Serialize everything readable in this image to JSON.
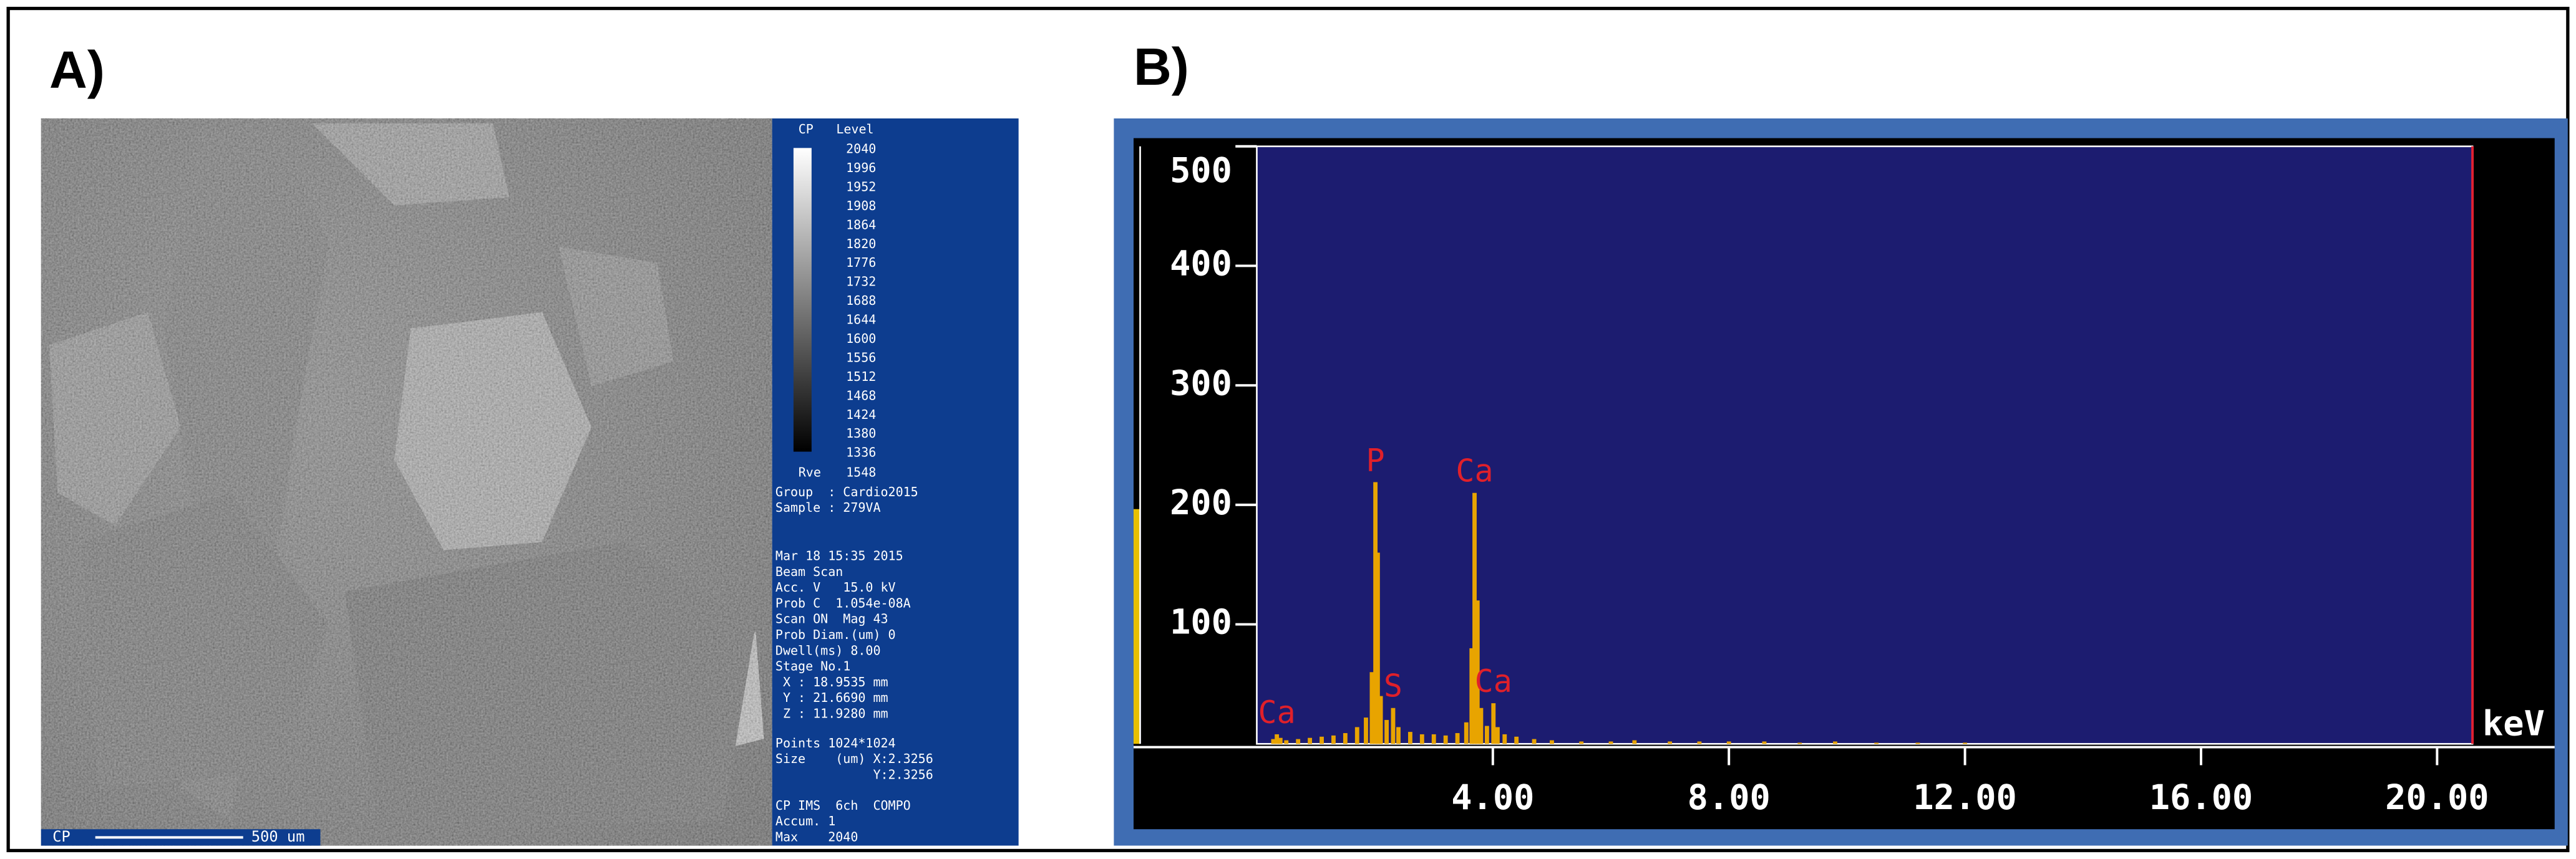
{
  "panel_a": {
    "label": "A)",
    "bar_header": "CP",
    "level_header": "Level",
    "levels": [
      "2040",
      "1996",
      "1952",
      "1908",
      "1864",
      "1820",
      "1776",
      "1732",
      "1688",
      "1644",
      "1600",
      "1556",
      "1512",
      "1468",
      "1424",
      "1380",
      "1336"
    ],
    "ave_label": "Rve",
    "ave_value": "1548",
    "info_blocks": [
      [
        "Group  : Cardio2015",
        "Sample : 279VA"
      ],
      [
        "Mar 18 15:35 2015",
        "Beam Scan",
        "Acc. V   15.0 kV",
        "Prob C  1.054e-08A",
        "Scan ON  Mag 43",
        "Prob Diam.(um) 0",
        "Dwell(ms) 8.00",
        "Stage No.1",
        " X : 18.9535 mm",
        " Y : 21.6690 mm",
        " Z : 11.9280 mm"
      ],
      [
        "Points 1024*1024",
        "Size    (um) X:2.3256",
        "             Y:2.3256"
      ],
      [
        "CP IMS  6ch  COMPO",
        "Accum. 1",
        "Max    2040"
      ]
    ],
    "scalebar_mode": "CP",
    "scalebar_label": "500 um"
  },
  "panel_b_label": "B)",
  "chart_data": {
    "type": "bar",
    "xlabel": "keV",
    "color": "#e8a400",
    "x": [
      0.28,
      0.34,
      0.4,
      0.5,
      0.7,
      0.9,
      1.1,
      1.3,
      1.5,
      1.7,
      1.85,
      1.95,
      2.01,
      2.05,
      2.1,
      2.2,
      2.31,
      2.4,
      2.6,
      2.8,
      3.0,
      3.2,
      3.4,
      3.55,
      3.64,
      3.69,
      3.74,
      3.8,
      3.9,
      4.01,
      4.08,
      4.2,
      4.4,
      4.7,
      5.0,
      5.5,
      6.0,
      6.4,
      7.0,
      7.5,
      8.0,
      8.6,
      9.2,
      9.8,
      10.5,
      11.2,
      12.0
    ],
    "values": [
      4,
      8,
      5,
      3,
      4,
      5,
      6,
      7,
      9,
      14,
      22,
      60,
      219,
      160,
      40,
      20,
      30,
      14,
      10,
      8,
      8,
      7,
      9,
      18,
      80,
      210,
      120,
      30,
      15,
      34,
      14,
      8,
      6,
      4,
      3,
      2,
      2,
      3,
      2,
      2,
      2,
      2,
      1,
      2,
      1,
      1,
      1
    ],
    "xlim": [
      0,
      20.6
    ],
    "ylim": [
      0,
      500
    ],
    "xticks": [
      {
        "value": 4,
        "label": "4.00"
      },
      {
        "value": 8,
        "label": "8.00"
      },
      {
        "value": 12,
        "label": "12.00"
      },
      {
        "value": 16,
        "label": "16.00"
      },
      {
        "value": 20,
        "label": "20.00"
      }
    ],
    "yticks": [
      100,
      200,
      300,
      400,
      500
    ],
    "peak_labels": [
      {
        "text": "Ca",
        "x": 0.34,
        "y": 8
      },
      {
        "text": "P",
        "x": 2.01,
        "y": 219
      },
      {
        "text": "S",
        "x": 2.31,
        "y": 30
      },
      {
        "text": "Ca",
        "x": 3.69,
        "y": 210
      },
      {
        "text": "Ca",
        "x": 4.01,
        "y": 34
      }
    ],
    "label_color": "#e0202a"
  }
}
